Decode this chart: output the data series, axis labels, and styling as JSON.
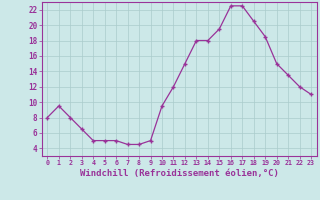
{
  "x": [
    0,
    1,
    2,
    3,
    4,
    5,
    6,
    7,
    8,
    9,
    10,
    11,
    12,
    13,
    14,
    15,
    16,
    17,
    18,
    19,
    20,
    21,
    22,
    23
  ],
  "y": [
    8,
    9.5,
    8,
    6.5,
    5,
    5,
    5,
    4.5,
    4.5,
    5,
    9.5,
    12,
    15,
    18,
    18,
    19.5,
    22.5,
    22.5,
    20.5,
    18.5,
    15,
    13.5,
    12,
    11
  ],
  "line_color": "#993399",
  "marker": "+",
  "marker_size": 3.5,
  "marker_lw": 1.0,
  "xlabel": "Windchill (Refroidissement éolien,°C)",
  "xlim": [
    -0.5,
    23.5
  ],
  "ylim": [
    3,
    23
  ],
  "yticks": [
    4,
    6,
    8,
    10,
    12,
    14,
    16,
    18,
    20,
    22
  ],
  "xticks": [
    0,
    1,
    2,
    3,
    4,
    5,
    6,
    7,
    8,
    9,
    10,
    11,
    12,
    13,
    14,
    15,
    16,
    17,
    18,
    19,
    20,
    21,
    22,
    23
  ],
  "bg_color": "#cce8e8",
  "grid_color": "#aacccc",
  "axis_color": "#993399",
  "tick_color": "#993399",
  "label_color": "#993399",
  "xlabel_fontsize": 6.5,
  "tick_fontsize_x": 4.8,
  "tick_fontsize_y": 5.5,
  "line_width": 0.9
}
